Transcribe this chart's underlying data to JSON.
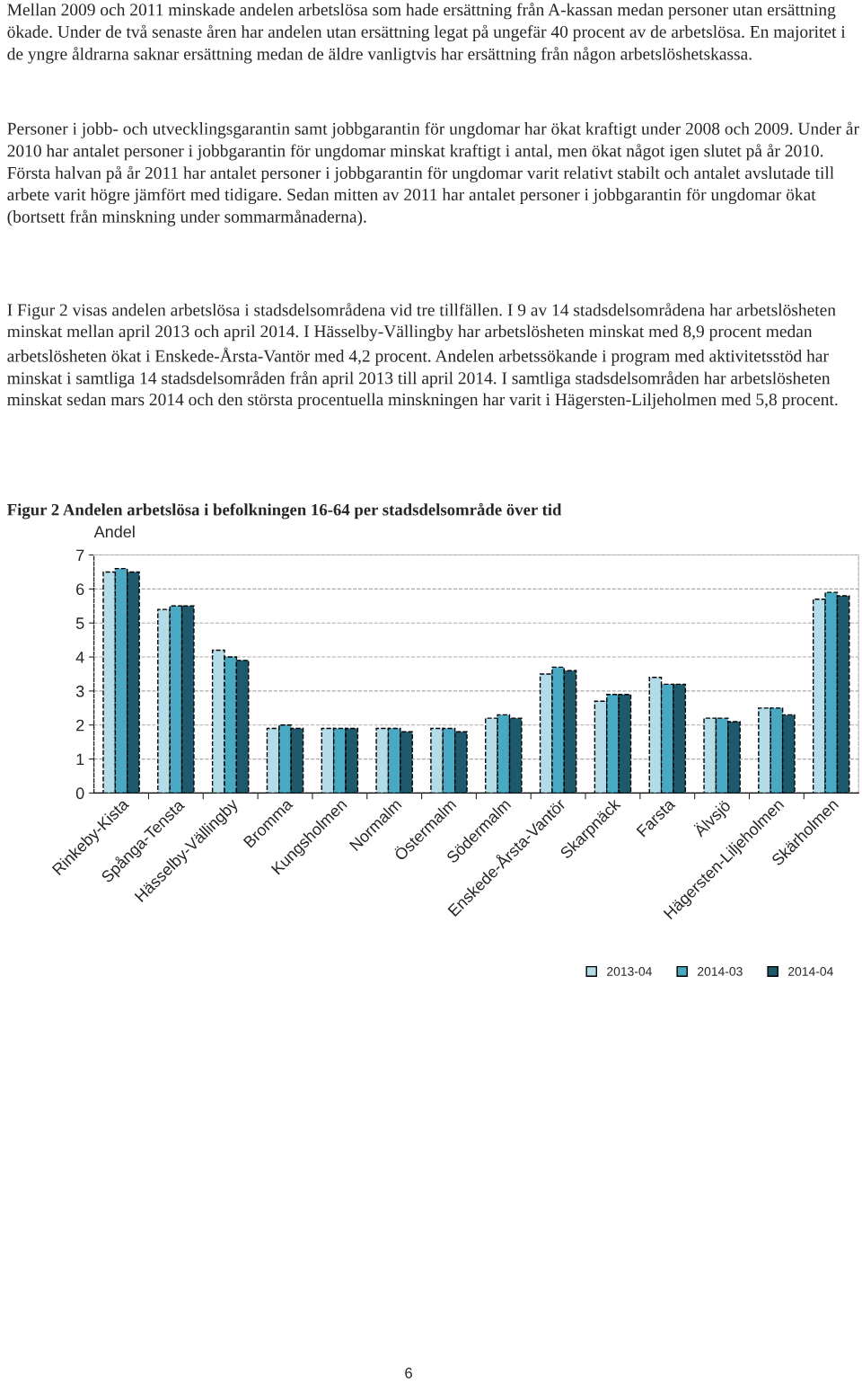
{
  "chart_data": {
    "type": "bar",
    "title": "Figur 2 Andelen arbetslösa i befolkningen 16-64 per stadsdelsområde över tid",
    "ylabel": "Andel",
    "categories": [
      "Rinkeby-Kista",
      "Spånga-Tensta",
      "Hässelby-Vällingby",
      "Bromma",
      "Kungsholmen",
      "Normalm",
      "Östermalm",
      "Södermalm",
      "Enskede-Årsta-Vantör",
      "Skarpnäck",
      "Farsta",
      "Älvsjö",
      "Hägersten-Liljeholmen",
      "Skärholmen"
    ],
    "series": [
      {
        "name": "2013-04",
        "color": "#b3dce8",
        "values": [
          6.5,
          5.4,
          4.2,
          1.9,
          1.9,
          1.9,
          1.9,
          2.2,
          3.5,
          2.7,
          3.4,
          2.2,
          2.5,
          5.7
        ]
      },
      {
        "name": "2014-03",
        "color": "#4aa9c2",
        "values": [
          6.6,
          5.5,
          4.0,
          2.0,
          1.9,
          1.9,
          1.9,
          2.3,
          3.7,
          2.9,
          3.2,
          2.2,
          2.5,
          5.9
        ]
      },
      {
        "name": "2014-04",
        "color": "#1e5a6b",
        "values": [
          6.5,
          5.5,
          3.9,
          1.9,
          1.9,
          1.8,
          1.8,
          2.2,
          3.6,
          2.9,
          3.2,
          2.1,
          2.3,
          5.8
        ]
      }
    ],
    "ylim": [
      0,
      7
    ],
    "yticks": [
      0,
      1,
      2,
      3,
      4,
      5,
      6,
      7
    ],
    "grid": "y",
    "legend": "bottom right",
    "annotations": [
      "Mellan 2009 och 2011 minskade andelen arbetslösa som hade ersättning från A-kassan medan personer utan ersättning ökade. Under de två senaste åren har andelen utan ersättning legat på ungefär 40 procent av de arbetslösa. En majoritet i de yngre åldrarna saknar ersättning medan de äldre vanligtvis har ersättning från någon arbetslöshetskassa.",
      "Personer i jobb- och utvecklingsgarantin samt jobbgarantin för ungdomar har ökat kraftigt under 2008 och 2009. Under år 2010 har antalet personer i jobbgarantin för ungdomar minskat kraftigt i antal, men ökat något igen slutet på år 2010. Första halvan på år 2011 har antalet personer i jobbgarantin för ungdomar varit relativt stabilt och antalet avslutade till arbete varit högre jämfört med tidigare. Sedan mitten av 2011 har antalet personer i jobbgarantin för ungdomar ökat (bortsett från minskning under sommarmånaderna).",
      "I Figur 2 visas andelen arbetslösa i stadsdelsområdena vid tre tillfällen. I 9 av 14 stadsdelsområdena har arbetslösheten minskat mellan april 2013 och april 2014. I Hässelby-Vällingby har arbetslösheten minskat med 8,9 procent medan arbetslösheten ökat i Enskede-Årsta-Vantör med 4,2 procent. Andelen arbetssökande i program med aktivitetsstöd har minskat i samtliga 14 stadsdelsområden från april 2013 till april 2014. I samtliga stadsdelsområden har arbetslösheten minskat sedan mars 2014 och den största procentuella minskningen har varit i Hägersten-Liljeholmen med 5,8 procent.",
      "6"
    ]
  }
}
